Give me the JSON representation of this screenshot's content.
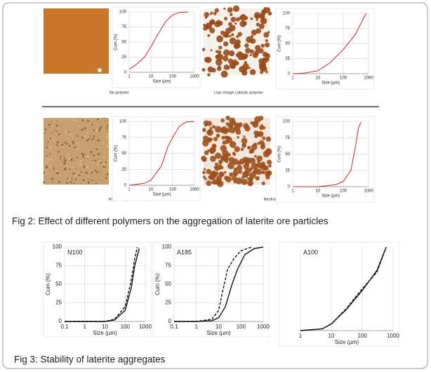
{
  "photo_labels": [
    "No polymer",
    "Low charge cationic polymer",
    "High charge cationic polymer",
    "Neutral polymer"
  ],
  "fig2_caption": "Fig 2: Effect of different polymers on the aggregation of laterite ore particles",
  "fig3_caption": "Fig 3: Stability of laterite aggregates",
  "chart_data": [
    {
      "type": "line",
      "x_label": "Size (µm)",
      "y_label": "Cum (%)",
      "log_x": true,
      "grid": true,
      "xlim": [
        1,
        1000
      ],
      "xticks": [
        1,
        10,
        100,
        1000
      ],
      "ylim": [
        0,
        100
      ],
      "yticks": [
        0,
        25,
        50,
        75,
        100
      ],
      "series": [
        {
          "color": "#d0202a",
          "style": "solid",
          "x": [
            1,
            2,
            5,
            10,
            20,
            50,
            100,
            200,
            500
          ],
          "values": [
            5,
            12,
            25,
            42,
            62,
            85,
            95,
            99,
            100
          ]
        }
      ]
    },
    {
      "type": "line",
      "x_label": "Size (µm)",
      "y_label": "Cum (%)",
      "log_x": true,
      "grid": true,
      "xlim": [
        1,
        1000
      ],
      "xticks": [
        1,
        10,
        100,
        1000
      ],
      "ylim": [
        0,
        100
      ],
      "yticks": [
        0,
        25,
        50,
        75,
        100
      ],
      "series": [
        {
          "color": "#d0202a",
          "style": "solid",
          "x": [
            1,
            3,
            10,
            30,
            100,
            300,
            600,
            800
          ],
          "values": [
            0,
            1,
            5,
            18,
            40,
            65,
            90,
            100
          ]
        }
      ]
    },
    {
      "type": "line",
      "x_label": "Size (µm)",
      "y_label": "Cum (%)",
      "log_x": true,
      "grid": true,
      "xlim": [
        1,
        1000
      ],
      "xticks": [
        1,
        10,
        100,
        1000
      ],
      "ylim": [
        0,
        100
      ],
      "yticks": [
        0,
        25,
        50,
        75,
        100
      ],
      "series": [
        {
          "color": "#d0202a",
          "style": "solid",
          "x": [
            1,
            5,
            10,
            30,
            60,
            100,
            200,
            400,
            1000
          ],
          "values": [
            0,
            3,
            8,
            30,
            60,
            75,
            92,
            99,
            100
          ]
        }
      ]
    },
    {
      "type": "line",
      "x_label": "Size (µm)",
      "y_label": "Cum (%)",
      "log_x": true,
      "grid": true,
      "xlim": [
        1,
        1000
      ],
      "xticks": [
        1,
        10,
        100,
        1000
      ],
      "ylim": [
        0,
        100
      ],
      "yticks": [
        0,
        25,
        50,
        75,
        100
      ],
      "series": [
        {
          "color": "#d0202a",
          "style": "solid",
          "x": [
            1,
            10,
            50,
            100,
            200,
            300,
            400,
            500
          ],
          "values": [
            0,
            0,
            3,
            8,
            25,
            60,
            90,
            99
          ]
        }
      ]
    },
    {
      "type": "line",
      "annotation": "N100",
      "x_label": "Size (µm)",
      "y_label": "Cum (%)",
      "log_x": true,
      "grid": true,
      "xlim": [
        0.1,
        1000
      ],
      "xticks": [
        0.1,
        1,
        10,
        100,
        1000
      ],
      "ylim": [
        0,
        100
      ],
      "yticks": [
        0,
        25,
        50,
        75,
        100
      ],
      "series": [
        {
          "color": "#111111",
          "style": "solid",
          "x": [
            0.1,
            1,
            10,
            30,
            100,
            200,
            300,
            500
          ],
          "values": [
            0,
            0,
            0,
            2,
            15,
            45,
            75,
            98
          ]
        },
        {
          "color": "#111111",
          "style": "dashed",
          "x": [
            0.1,
            10,
            30,
            100,
            200,
            300,
            400
          ],
          "values": [
            0,
            0,
            3,
            20,
            55,
            85,
            100
          ]
        }
      ]
    },
    {
      "type": "line",
      "annotation": "A185",
      "x_label": "Size (µm)",
      "y_label": "Cum (%)",
      "log_x": true,
      "grid": true,
      "xlim": [
        0.1,
        1000
      ],
      "xticks": [
        0.1,
        1,
        10,
        100,
        1000
      ],
      "ylim": [
        0,
        100
      ],
      "yticks": [
        0,
        25,
        50,
        75,
        100
      ],
      "series": [
        {
          "color": "#111111",
          "style": "solid",
          "x": [
            0.1,
            1,
            5,
            10,
            20,
            40,
            70,
            150,
            400,
            1000
          ],
          "values": [
            0,
            0,
            1,
            5,
            20,
            50,
            70,
            90,
            98,
            100
          ]
        },
        {
          "color": "#111111",
          "style": "dashed",
          "x": [
            0.1,
            1,
            5,
            10,
            15,
            25,
            50,
            100,
            300
          ],
          "values": [
            0,
            0,
            3,
            15,
            40,
            70,
            85,
            95,
            100
          ]
        }
      ]
    },
    {
      "type": "line",
      "annotation": "A100",
      "x_label": "Size (µm)",
      "log_x": true,
      "grid": true,
      "xlim": [
        1,
        1000
      ],
      "xticks": [
        1,
        10,
        100,
        1000
      ],
      "ylim": [
        0,
        100
      ],
      "series": [
        {
          "color": "#111111",
          "style": "solid",
          "x": [
            1,
            5,
            10,
            30,
            100,
            300,
            600
          ],
          "values": [
            0,
            2,
            8,
            25,
            48,
            72,
            100
          ]
        },
        {
          "color": "#111111",
          "style": "dashed",
          "x": [
            1,
            5,
            10,
            30,
            100,
            300,
            600
          ],
          "values": [
            0,
            2,
            8,
            26,
            50,
            70,
            100
          ]
        }
      ]
    }
  ]
}
